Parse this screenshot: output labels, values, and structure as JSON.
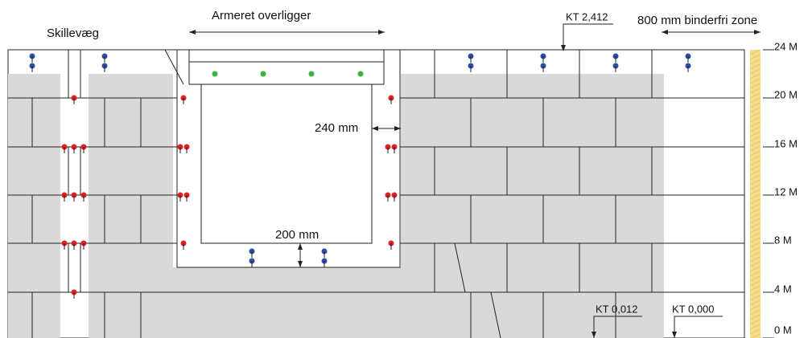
{
  "labels": {
    "partition": "Skillevæg",
    "lintel": "Armeret overligger",
    "binder_free": "800 mm binderfri zone"
  },
  "dimensions": {
    "side": "240 mm",
    "bottom": "200 mm"
  },
  "levels": {
    "top": "KT 2,412",
    "floor": "KT 0,012",
    "ground": "KT 0,000"
  },
  "scale": [
    "24 M",
    "20 M",
    "16 M",
    "12 M",
    "8 M",
    "4 M",
    "0 M"
  ]
}
